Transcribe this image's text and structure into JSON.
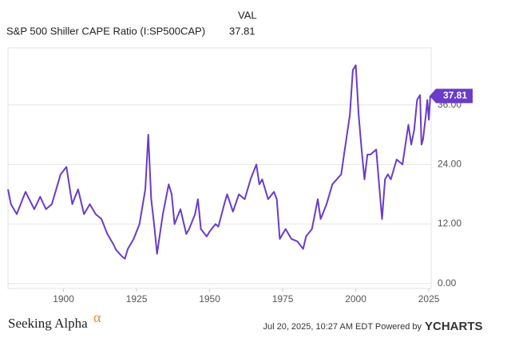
{
  "chart_data": {
    "type": "line",
    "value_header": "VAL",
    "x": [
      1881,
      1882,
      1884,
      1886,
      1887,
      1890,
      1892,
      1894,
      1896,
      1899,
      1901,
      1903,
      1905,
      1907,
      1909,
      1911,
      1913,
      1915,
      1917,
      1918,
      1920,
      1921,
      1922,
      1924,
      1926,
      1928,
      1929,
      1930,
      1931,
      1932,
      1933,
      1934,
      1936,
      1937,
      1938,
      1940,
      1942,
      1943,
      1945,
      1946,
      1947,
      1949,
      1950,
      1952,
      1953,
      1955,
      1956,
      1958,
      1960,
      1962,
      1964,
      1966,
      1967,
      1968,
      1970,
      1972,
      1973,
      1974,
      1976,
      1978,
      1980,
      1982,
      1983,
      1985,
      1987,
      1988,
      1990,
      1992,
      1995,
      1996,
      1998,
      1999,
      2000,
      2001,
      2002,
      2003,
      2004,
      2005,
      2007,
      2008,
      2009,
      2010,
      2011,
      2012,
      2014,
      2016,
      2018,
      2019,
      2020,
      2021,
      2022,
      2022.5,
      2023,
      2024,
      2024.5,
      2025,
      2025.5
    ],
    "series": [
      {
        "name": "S&P 500 Shiller CAPE Ratio (I:SP500CAP)",
        "color": "#6a3cc8",
        "values": [
          19,
          16,
          14,
          17,
          18.5,
          15,
          17.5,
          15,
          16,
          22,
          23.5,
          16,
          19,
          14,
          16,
          14,
          13,
          10,
          8,
          6.8,
          5.5,
          5,
          7,
          9,
          12,
          19,
          30,
          17,
          12,
          6,
          10,
          14,
          20,
          18,
          12,
          15,
          10,
          11,
          14,
          17,
          11,
          9.5,
          10.5,
          12,
          11.5,
          16,
          18,
          14.5,
          18,
          17,
          21,
          24,
          20,
          21,
          17,
          18.5,
          17,
          9,
          11,
          9,
          8.5,
          7,
          9.5,
          11,
          17,
          13,
          16,
          20,
          22,
          26,
          34,
          43,
          44,
          34,
          27,
          21,
          26,
          26,
          27,
          20,
          13,
          21,
          22,
          21,
          25,
          24,
          32,
          28,
          31,
          37,
          38,
          28,
          29,
          34,
          37,
          33,
          37.81
        ]
      }
    ],
    "xlim": [
      1881,
      2025.8
    ],
    "xticks": [
      1900,
      1925,
      1950,
      1975,
      2000,
      2025
    ],
    "ylim": [
      -1,
      47.5
    ],
    "yticks": [
      {
        "value": 0,
        "label": "0.00"
      },
      {
        "value": 12,
        "label": "12.00"
      },
      {
        "value": 24,
        "label": "24.00"
      },
      {
        "value": 36,
        "label": "36.00"
      }
    ],
    "grid": true,
    "brand": "Seeking Alpha",
    "brand_mark": "α",
    "timestamp": "Jul 20, 2025, 10:27 AM EDT Powered by",
    "provider": "YCHARTS"
  }
}
